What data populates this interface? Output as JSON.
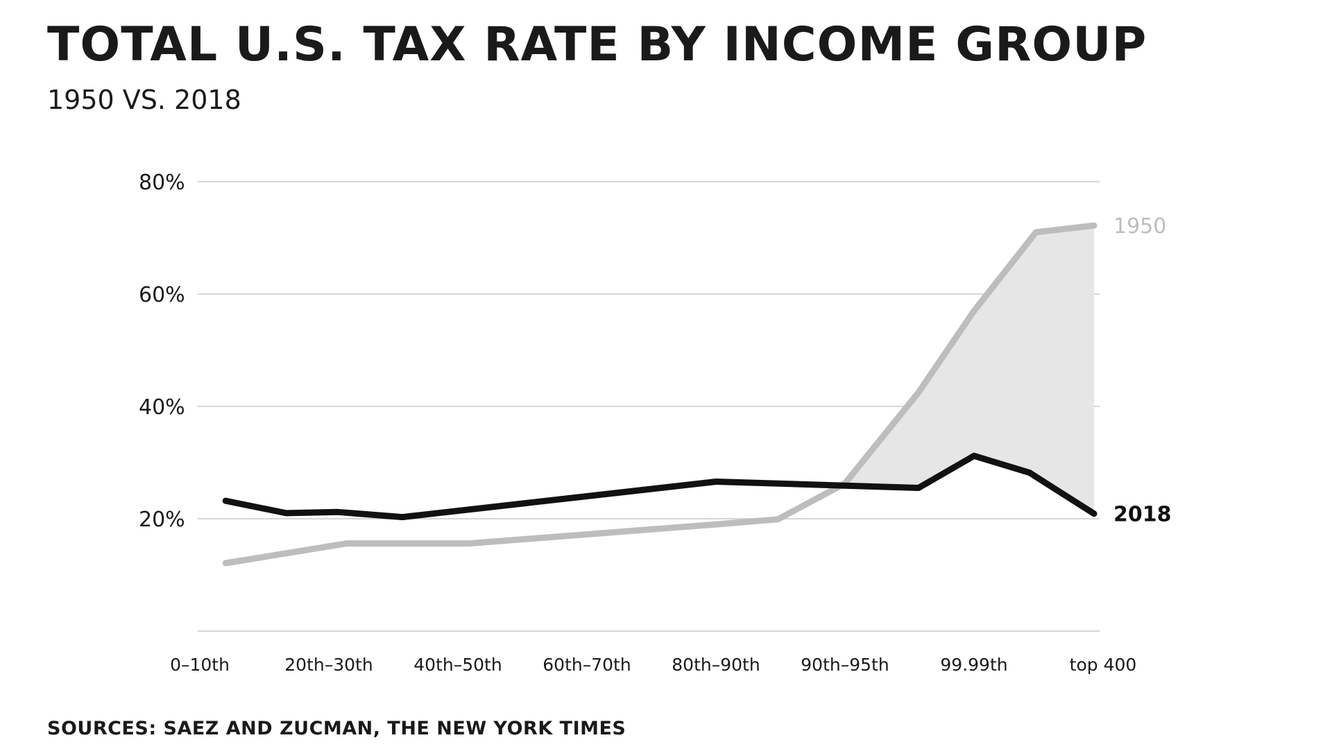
{
  "header": {
    "title": "TOTAL U.S. TAX RATE BY INCOME GROUP",
    "subtitle": "1950 VS. 2018"
  },
  "footer": {
    "source": "SOURCES: SAEZ AND ZUCMAN, THE NEW YORK TIMES"
  },
  "colors": {
    "series_2018": "#111111",
    "series_1950": "#bdbdbd",
    "gap_fill": "#e6e6e6",
    "grid": "#d6d6d6"
  },
  "chart_data": {
    "type": "line",
    "title": "TOTAL U.S. TAX RATE BY INCOME GROUP",
    "subtitle": "1950 VS. 2018",
    "xlabel": "",
    "ylabel": "",
    "ylim": [
      0,
      80
    ],
    "y_ticks": [
      "20%",
      "40%",
      "60%",
      "80%"
    ],
    "y_tick_values": [
      20,
      40,
      60,
      80
    ],
    "x_tick_labels": [
      "0–10th",
      "20th–30th",
      "40th–50th",
      "60th–70th",
      "80th–90th",
      "90th–95th",
      "99.99th",
      "top 400"
    ],
    "x_tick_positions": [
      0,
      1,
      2,
      3,
      4,
      5,
      6,
      7
    ],
    "grid": true,
    "legend": "direct labels at right end of lines",
    "shading": "area between 1950 and 2018 where 1950 exceeds 2018",
    "series": [
      {
        "name": "2018",
        "x": [
          0.2,
          0.67,
          1.07,
          1.57,
          4.0,
          5.0,
          5.57,
          6.0,
          6.43,
          6.93
        ],
        "values": [
          23.2,
          21.0,
          21.2,
          20.3,
          26.6,
          25.9,
          25.5,
          31.2,
          28.2,
          20.9
        ]
      },
      {
        "name": "1950",
        "x": [
          0.2,
          1.14,
          2.09,
          4.0,
          4.48,
          5.0,
          5.57,
          6.0,
          6.48,
          6.93
        ],
        "values": [
          12.1,
          15.6,
          15.6,
          19.0,
          19.9,
          26.3,
          42.5,
          57.0,
          71.0,
          72.2
        ]
      }
    ]
  }
}
